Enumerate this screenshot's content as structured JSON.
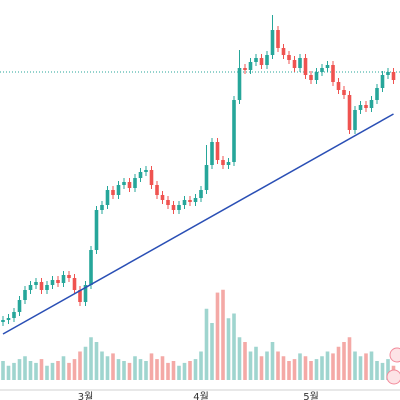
{
  "chart_data": {
    "type": "candlestick",
    "categories": [
      null,
      null,
      null,
      null,
      null,
      null,
      null,
      null,
      null,
      null,
      null,
      null,
      null,
      null,
      null,
      "3월",
      null,
      null,
      null,
      null,
      null,
      null,
      null,
      null,
      null,
      null,
      null,
      null,
      null,
      null,
      null,
      null,
      null,
      null,
      null,
      null,
      "4월",
      null,
      null,
      null,
      null,
      null,
      null,
      null,
      null,
      null,
      null,
      null,
      null,
      null,
      null,
      null,
      null,
      null,
      null,
      null,
      "5월",
      null,
      null,
      null,
      null,
      null,
      null,
      null,
      null,
      null,
      null,
      null,
      null,
      null,
      null,
      null
    ],
    "open": [
      78,
      80,
      82,
      88,
      100,
      110,
      115,
      118,
      110,
      115,
      120,
      117,
      125,
      122,
      110,
      98,
      115,
      150,
      190,
      195,
      210,
      205,
      215,
      218,
      212,
      222,
      228,
      230,
      215,
      205,
      200,
      195,
      190,
      195,
      200,
      198,
      202,
      210,
      235,
      258,
      240,
      235,
      238,
      300,
      332,
      330,
      338,
      342,
      335,
      345,
      370,
      352,
      345,
      340,
      332,
      342,
      325,
      320,
      328,
      332,
      335,
      318,
      310,
      305,
      270,
      290,
      295,
      292,
      300,
      312,
      325,
      328
    ],
    "high": [
      84,
      86,
      92,
      104,
      114,
      119,
      122,
      122,
      119,
      124,
      124,
      129,
      129,
      126,
      114,
      119,
      154,
      194,
      199,
      214,
      214,
      219,
      222,
      222,
      226,
      232,
      234,
      234,
      219,
      209,
      204,
      199,
      199,
      204,
      204,
      206,
      214,
      255,
      262,
      262,
      244,
      242,
      304,
      350,
      336,
      342,
      346,
      346,
      349,
      385,
      374,
      356,
      349,
      344,
      346,
      346,
      329,
      332,
      336,
      339,
      339,
      322,
      314,
      309,
      294,
      299,
      299,
      304,
      316,
      329,
      332,
      332
    ],
    "low": [
      74,
      76,
      78,
      84,
      96,
      106,
      111,
      106,
      106,
      111,
      113,
      113,
      118,
      106,
      94,
      94,
      111,
      146,
      186,
      191,
      201,
      201,
      211,
      208,
      208,
      218,
      224,
      211,
      201,
      196,
      191,
      186,
      186,
      191,
      194,
      194,
      198,
      206,
      231,
      236,
      231,
      231,
      234,
      296,
      326,
      326,
      334,
      331,
      331,
      341,
      348,
      341,
      336,
      328,
      328,
      321,
      316,
      316,
      324,
      328,
      314,
      306,
      301,
      266,
      266,
      286,
      288,
      288,
      296,
      308,
      321,
      316
    ],
    "close": [
      80,
      82,
      88,
      100,
      110,
      115,
      118,
      110,
      115,
      120,
      117,
      125,
      122,
      110,
      98,
      115,
      150,
      190,
      195,
      210,
      205,
      215,
      218,
      212,
      222,
      228,
      230,
      215,
      205,
      200,
      195,
      190,
      195,
      200,
      198,
      202,
      210,
      235,
      258,
      240,
      235,
      238,
      300,
      332,
      330,
      338,
      342,
      335,
      345,
      370,
      352,
      345,
      340,
      332,
      342,
      325,
      320,
      328,
      332,
      335,
      318,
      310,
      305,
      270,
      290,
      295,
      292,
      300,
      312,
      325,
      328,
      320
    ],
    "volume": [
      20,
      15,
      18,
      22,
      25,
      20,
      18,
      22,
      15,
      18,
      20,
      25,
      18,
      22,
      30,
      35,
      45,
      40,
      30,
      25,
      28,
      22,
      20,
      18,
      25,
      22,
      20,
      28,
      22,
      25,
      18,
      20,
      15,
      18,
      20,
      22,
      30,
      75,
      60,
      92,
      95,
      65,
      70,
      45,
      40,
      30,
      35,
      25,
      30,
      40,
      30,
      25,
      20,
      22,
      28,
      25,
      20,
      22,
      25,
      30,
      28,
      35,
      40,
      45,
      30,
      25,
      28,
      30,
      20,
      18,
      22,
      15
    ],
    "ylim": [
      0,
      400
    ],
    "volume_lim": [
      0,
      100
    ],
    "up_color": "#26a69a",
    "down_color": "#ef5350",
    "volume_up_color": "#9fd5cf",
    "volume_down_color": "#f4a9a6",
    "trendline": {
      "from": [
        0,
        66
      ],
      "to": [
        71,
        286
      ],
      "color": "#2a4fb5"
    },
    "price_line": {
      "value": 328,
      "color": "#26a69a"
    }
  }
}
